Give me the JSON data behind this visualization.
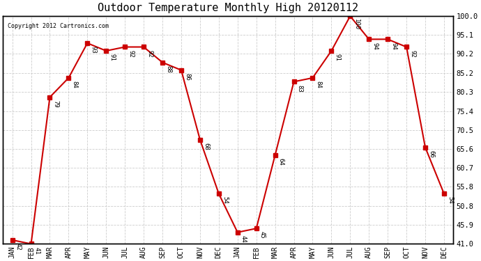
{
  "title": "Outdoor Temperature Monthly High 20120112",
  "copyright": "Copyright 2012 Cartronics.com",
  "months": [
    "JAN",
    "FEB",
    "MAR",
    "APR",
    "MAY",
    "JUN",
    "JUL",
    "AUG",
    "SEP",
    "OCT",
    "NOV",
    "DEC",
    "JAN",
    "FEB",
    "MAR",
    "APR",
    "MAY",
    "JUN",
    "JUL",
    "AUG",
    "SEP",
    "OCT",
    "NOV",
    "DEC"
  ],
  "values": [
    42,
    41,
    79,
    84,
    93,
    91,
    92,
    92,
    88,
    86,
    68,
    54,
    44,
    45,
    64,
    83,
    84,
    91,
    100,
    94,
    94,
    92,
    66,
    54
  ],
  "line_color": "#cc0000",
  "marker_color": "#cc0000",
  "bg_color": "#ffffff",
  "grid_color": "#cccccc",
  "yticks_right": [
    41.0,
    45.9,
    50.8,
    55.8,
    60.7,
    65.6,
    70.5,
    75.4,
    80.3,
    85.2,
    90.2,
    95.1,
    100.0
  ]
}
